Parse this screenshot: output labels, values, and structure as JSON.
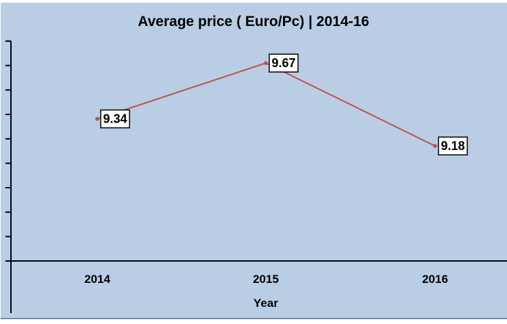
{
  "chart_data": {
    "type": "line",
    "title": "Average price ( Euro/Pc)  | 2014-16",
    "xlabel": "Year",
    "ylabel": "",
    "categories": [
      "2014",
      "2015",
      "2016"
    ],
    "series": [
      {
        "values": [
          9.34,
          9.67,
          9.18
        ],
        "color": "#C0504D"
      }
    ],
    "data_labels": [
      "9.34",
      "9.67",
      "9.18"
    ],
    "ylim": [
      8.5,
      9.8
    ],
    "grid": false,
    "legend": "none",
    "colors": {
      "plot_background": "#B9CDE5",
      "line": "#C0504D"
    }
  }
}
